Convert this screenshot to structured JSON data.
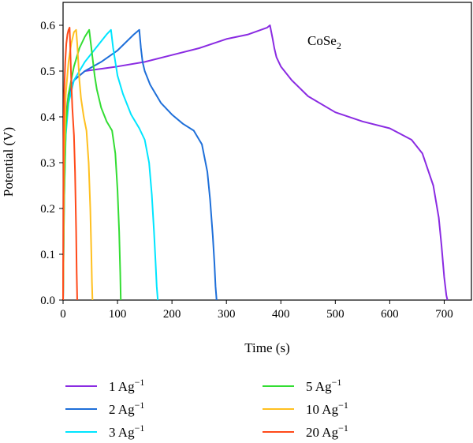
{
  "chart_data": {
    "type": "line",
    "annotation": {
      "text": "CoSe",
      "subscript": "2"
    },
    "xlabel": "Time (s)",
    "ylabel": "Potential (V)",
    "xlim": [
      0,
      750
    ],
    "ylim": [
      0,
      0.65
    ],
    "xticks": [
      0,
      100,
      200,
      300,
      400,
      500,
      600,
      700
    ],
    "yticks": [
      0.0,
      0.1,
      0.2,
      0.3,
      0.4,
      0.5,
      0.6
    ],
    "ytick_labels": [
      "0.0",
      "0.1",
      "0.2",
      "0.3",
      "0.4",
      "0.5",
      "0.6"
    ],
    "grid": false,
    "legend_position": "bottom",
    "series": [
      {
        "name": "1 Ag",
        "sup": "−1",
        "color": "#8a2be2",
        "x": [
          0,
          2,
          5,
          10,
          20,
          40,
          70,
          100,
          150,
          200,
          250,
          300,
          340,
          375,
          380,
          385,
          388,
          392,
          400,
          420,
          450,
          500,
          550,
          600,
          640,
          660,
          680,
          690,
          695,
          700,
          704,
          706
        ],
        "y": [
          0.0,
          0.28,
          0.4,
          0.45,
          0.48,
          0.5,
          0.505,
          0.51,
          0.52,
          0.535,
          0.55,
          0.57,
          0.58,
          0.595,
          0.6,
          0.57,
          0.55,
          0.53,
          0.51,
          0.48,
          0.445,
          0.41,
          0.39,
          0.375,
          0.35,
          0.32,
          0.25,
          0.18,
          0.12,
          0.05,
          0.01,
          0.0
        ]
      },
      {
        "name": "2 Ag",
        "sup": "−1",
        "color": "#1e6fd9",
        "x": [
          0,
          2,
          5,
          10,
          20,
          40,
          70,
          100,
          130,
          140,
          143,
          146,
          150,
          160,
          180,
          200,
          220,
          240,
          255,
          265,
          270,
          275,
          278,
          280,
          282
        ],
        "y": [
          0.0,
          0.25,
          0.37,
          0.44,
          0.48,
          0.5,
          0.52,
          0.545,
          0.58,
          0.59,
          0.55,
          0.52,
          0.5,
          0.47,
          0.43,
          0.405,
          0.385,
          0.37,
          0.34,
          0.28,
          0.22,
          0.14,
          0.08,
          0.03,
          0.0
        ]
      },
      {
        "name": "3 Ag",
        "sup": "−1",
        "color": "#00e5ff",
        "x": [
          0,
          2,
          5,
          10,
          20,
          40,
          60,
          80,
          88,
          92,
          96,
          100,
          110,
          125,
          140,
          150,
          158,
          163,
          167,
          170,
          172,
          174
        ],
        "y": [
          0.0,
          0.22,
          0.36,
          0.43,
          0.48,
          0.52,
          0.55,
          0.58,
          0.59,
          0.55,
          0.52,
          0.49,
          0.45,
          0.405,
          0.375,
          0.35,
          0.3,
          0.23,
          0.15,
          0.08,
          0.03,
          0.0
        ]
      },
      {
        "name": "5 Ag",
        "sup": "−1",
        "color": "#33dd33",
        "x": [
          0,
          2,
          5,
          10,
          20,
          30,
          40,
          48,
          52,
          55,
          58,
          62,
          70,
          80,
          90,
          96,
          100,
          103,
          105,
          106
        ],
        "y": [
          0.0,
          0.22,
          0.38,
          0.45,
          0.51,
          0.55,
          0.575,
          0.59,
          0.55,
          0.52,
          0.49,
          0.46,
          0.42,
          0.39,
          0.37,
          0.32,
          0.24,
          0.15,
          0.06,
          0.0
        ]
      },
      {
        "name": "10 Ag",
        "sup": "−1",
        "color": "#ffc020",
        "x": [
          0,
          2,
          5,
          10,
          15,
          20,
          24,
          26,
          28,
          30,
          33,
          38,
          43,
          47,
          50,
          52,
          53,
          54
        ],
        "y": [
          0.0,
          0.3,
          0.45,
          0.52,
          0.56,
          0.585,
          0.59,
          0.56,
          0.52,
          0.48,
          0.44,
          0.4,
          0.37,
          0.3,
          0.2,
          0.1,
          0.04,
          0.0
        ]
      },
      {
        "name": "20 Ag",
        "sup": "−1",
        "color": "#ff4a1a",
        "x": [
          0,
          1,
          2,
          4,
          6,
          8,
          10,
          12,
          13,
          14,
          15,
          16,
          17,
          18,
          20,
          22,
          24,
          25,
          26
        ],
        "y": [
          0.0,
          0.35,
          0.45,
          0.52,
          0.56,
          0.58,
          0.59,
          0.595,
          0.56,
          0.52,
          0.48,
          0.45,
          0.42,
          0.4,
          0.36,
          0.28,
          0.15,
          0.06,
          0.0
        ]
      }
    ]
  }
}
